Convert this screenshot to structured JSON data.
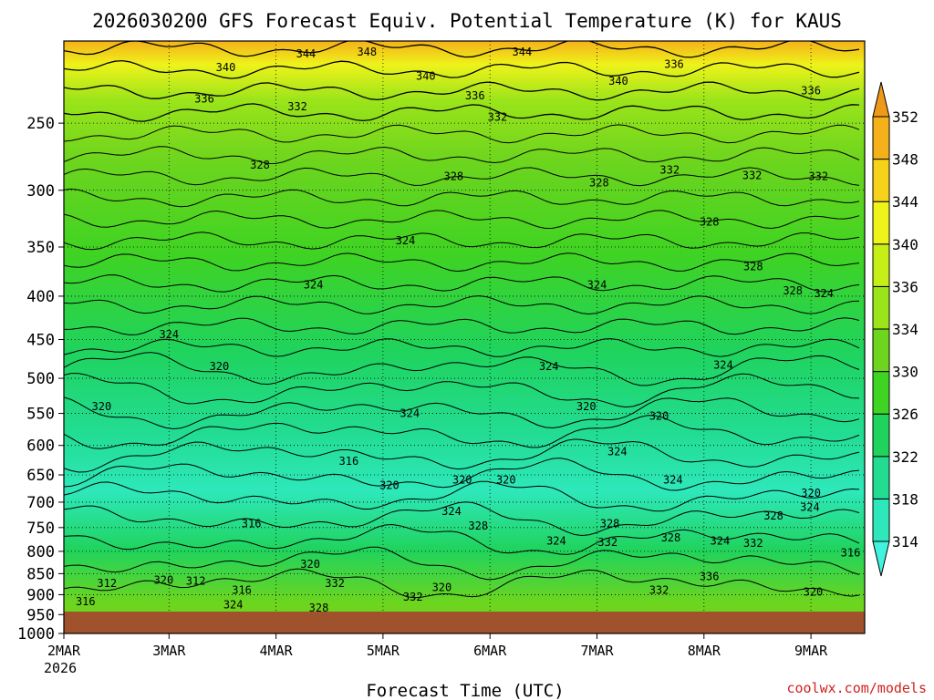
{
  "chart_data": {
    "type": "heatmap",
    "title": "2026030200 GFS Forecast Equiv. Potential Temperature (K) for KAUS",
    "xlabel": "Forecast Time (UTC)",
    "ylabel": "",
    "x_ticks": [
      "2MAR",
      "3MAR",
      "4MAR",
      "5MAR",
      "6MAR",
      "7MAR",
      "8MAR",
      "9MAR"
    ],
    "x_year": "2026",
    "xlim_days": [
      0,
      7.5
    ],
    "y_ticks": [
      250,
      300,
      350,
      400,
      450,
      500,
      550,
      600,
      650,
      700,
      750,
      800,
      850,
      900,
      950,
      1000
    ],
    "y_tick_labels": [
      "250",
      "300",
      "350",
      "400",
      "450",
      "500",
      "550",
      "600",
      "650",
      "700",
      "750",
      "800",
      "850",
      "900",
      "950",
      "1000"
    ],
    "ylim_hpa": [
      200,
      1000
    ],
    "y_scale": "log",
    "grid": true,
    "colorbar": {
      "levels": [
        314,
        318,
        322,
        326,
        330,
        334,
        336,
        340,
        344,
        348,
        352
      ],
      "labels": [
        "314",
        "318",
        "322",
        "326",
        "330",
        "334",
        "336",
        "340",
        "344",
        "348",
        "352"
      ],
      "colors": [
        "#3ff3de",
        "#2ee8bb",
        "#22dc92",
        "#20d35c",
        "#3fd323",
        "#6ed51e",
        "#9be41a",
        "#c6ef18",
        "#eef31a",
        "#f7d21a",
        "#f5b11a",
        "#ee9a18"
      ],
      "extend": "both"
    },
    "ground_color": "#a0522d",
    "contour_labels": [
      {
        "value": "340",
        "day": 1.53,
        "hpa": 215
      },
      {
        "value": "344",
        "day": 2.28,
        "hpa": 207
      },
      {
        "value": "348",
        "day": 2.85,
        "hpa": 206
      },
      {
        "value": "344",
        "day": 4.3,
        "hpa": 206
      },
      {
        "value": "340",
        "day": 3.4,
        "hpa": 220
      },
      {
        "value": "340",
        "day": 5.2,
        "hpa": 223
      },
      {
        "value": "336",
        "day": 5.72,
        "hpa": 213
      },
      {
        "value": "336",
        "day": 1.33,
        "hpa": 234
      },
      {
        "value": "332",
        "day": 2.2,
        "hpa": 239
      },
      {
        "value": "336",
        "day": 3.86,
        "hpa": 232
      },
      {
        "value": "332",
        "day": 4.07,
        "hpa": 246
      },
      {
        "value": "336",
        "day": 7.0,
        "hpa": 229
      },
      {
        "value": "328",
        "day": 1.85,
        "hpa": 280
      },
      {
        "value": "328",
        "day": 3.66,
        "hpa": 289
      },
      {
        "value": "328",
        "day": 5.02,
        "hpa": 294
      },
      {
        "value": "332",
        "day": 5.68,
        "hpa": 284
      },
      {
        "value": "332",
        "day": 6.45,
        "hpa": 288
      },
      {
        "value": "332",
        "day": 7.07,
        "hpa": 289
      },
      {
        "value": "324",
        "day": 3.21,
        "hpa": 344
      },
      {
        "value": "328",
        "day": 6.05,
        "hpa": 327
      },
      {
        "value": "328",
        "day": 6.46,
        "hpa": 369
      },
      {
        "value": "324",
        "day": 2.35,
        "hpa": 388
      },
      {
        "value": "324",
        "day": 5.0,
        "hpa": 388
      },
      {
        "value": "328",
        "day": 6.83,
        "hpa": 394
      },
      {
        "value": "324",
        "day": 7.12,
        "hpa": 397
      },
      {
        "value": "324",
        "day": 1.0,
        "hpa": 444
      },
      {
        "value": "320",
        "day": 1.47,
        "hpa": 484
      },
      {
        "value": "324",
        "day": 4.55,
        "hpa": 484
      },
      {
        "value": "324",
        "day": 6.18,
        "hpa": 482
      },
      {
        "value": "320",
        "day": 0.37,
        "hpa": 540
      },
      {
        "value": "324",
        "day": 3.25,
        "hpa": 550
      },
      {
        "value": "320",
        "day": 4.9,
        "hpa": 540
      },
      {
        "value": "320",
        "day": 5.58,
        "hpa": 554
      },
      {
        "value": "324",
        "day": 5.19,
        "hpa": 610
      },
      {
        "value": "316",
        "day": 2.68,
        "hpa": 626
      },
      {
        "value": "320",
        "day": 3.06,
        "hpa": 669
      },
      {
        "value": "320",
        "day": 3.74,
        "hpa": 659
      },
      {
        "value": "320",
        "day": 4.15,
        "hpa": 659
      },
      {
        "value": "324",
        "day": 5.71,
        "hpa": 659
      },
      {
        "value": "320",
        "day": 7.0,
        "hpa": 683
      },
      {
        "value": "324",
        "day": 3.64,
        "hpa": 718
      },
      {
        "value": "324",
        "day": 6.99,
        "hpa": 710
      },
      {
        "value": "316",
        "day": 1.77,
        "hpa": 742
      },
      {
        "value": "328",
        "day": 5.12,
        "hpa": 742
      },
      {
        "value": "328",
        "day": 3.89,
        "hpa": 747
      },
      {
        "value": "328",
        "day": 6.65,
        "hpa": 727
      },
      {
        "value": "324",
        "day": 4.62,
        "hpa": 778
      },
      {
        "value": "332",
        "day": 5.1,
        "hpa": 781
      },
      {
        "value": "328",
        "day": 5.69,
        "hpa": 771
      },
      {
        "value": "324",
        "day": 6.15,
        "hpa": 778
      },
      {
        "value": "332",
        "day": 6.46,
        "hpa": 783
      },
      {
        "value": "316",
        "day": 7.37,
        "hpa": 803
      },
      {
        "value": "320",
        "day": 2.32,
        "hpa": 828
      },
      {
        "value": "312",
        "day": 0.42,
        "hpa": 873
      },
      {
        "value": "320",
        "day": 0.95,
        "hpa": 865
      },
      {
        "value": "312",
        "day": 1.25,
        "hpa": 867
      },
      {
        "value": "316",
        "day": 1.68,
        "hpa": 889
      },
      {
        "value": "332",
        "day": 2.55,
        "hpa": 873
      },
      {
        "value": "336",
        "day": 6.05,
        "hpa": 857
      },
      {
        "value": "332",
        "day": 5.58,
        "hpa": 889
      },
      {
        "value": "320",
        "day": 3.55,
        "hpa": 883
      },
      {
        "value": "316",
        "day": 0.22,
        "hpa": 917
      },
      {
        "value": "324",
        "day": 1.6,
        "hpa": 925
      },
      {
        "value": "328",
        "day": 2.4,
        "hpa": 933
      },
      {
        "value": "332",
        "day": 3.28,
        "hpa": 906
      },
      {
        "value": "320",
        "day": 7.02,
        "hpa": 894
      }
    ]
  },
  "credit": "coolwx.com/models"
}
